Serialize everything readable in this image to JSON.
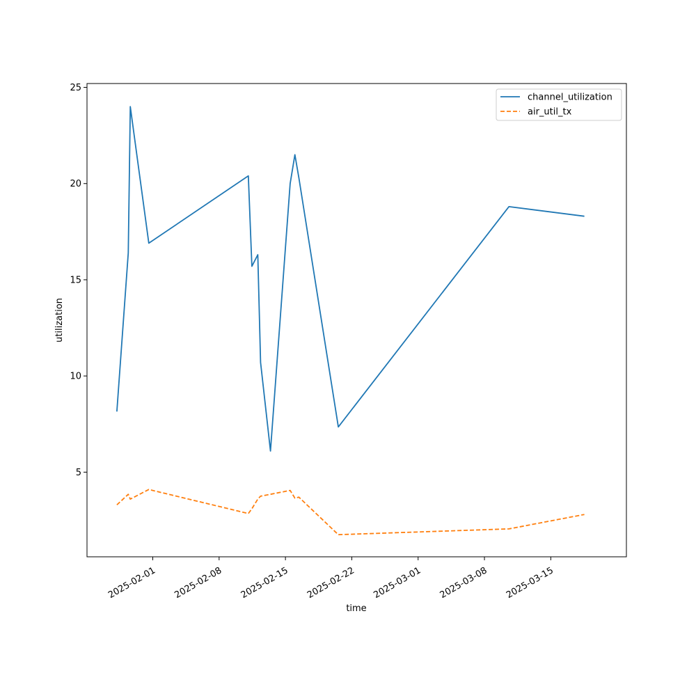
{
  "chart_data": {
    "type": "line",
    "title": "",
    "xlabel": "time",
    "ylabel": "utilization",
    "x_type": "date",
    "xlim": [
      "2025-01-25T01:25",
      "2025-03-22T23:30"
    ],
    "ylim": [
      0.6,
      25.2
    ],
    "x_ticks": [
      "2025-02-01",
      "2025-02-08",
      "2025-02-15",
      "2025-02-22",
      "2025-03-01",
      "2025-03-08",
      "2025-03-15"
    ],
    "y_ticks": [
      5,
      10,
      15,
      20,
      25
    ],
    "grid": false,
    "legend": "top-right",
    "series": [
      {
        "name": "channel_utilization",
        "color": "#1f77b4",
        "dash": "solid",
        "points": [
          {
            "x": "2025-01-28T05:00",
            "y": 8.15
          },
          {
            "x": "2025-01-29T10:00",
            "y": 16.4
          },
          {
            "x": "2025-01-29T15:00",
            "y": 24.0
          },
          {
            "x": "2025-01-31T14:00",
            "y": 16.9
          },
          {
            "x": "2025-02-11T02:00",
            "y": 20.4
          },
          {
            "x": "2025-02-11T11:00",
            "y": 15.7
          },
          {
            "x": "2025-02-12T02:00",
            "y": 16.3
          },
          {
            "x": "2025-02-12T09:00",
            "y": 10.7
          },
          {
            "x": "2025-02-13T10:00",
            "y": 6.1
          },
          {
            "x": "2025-02-15T12:00",
            "y": 20.0
          },
          {
            "x": "2025-02-16T00:00",
            "y": 21.5
          },
          {
            "x": "2025-02-16T10:00",
            "y": 20.3
          },
          {
            "x": "2025-02-20T14:00",
            "y": 7.35
          },
          {
            "x": "2025-03-10T14:00",
            "y": 18.8
          },
          {
            "x": "2025-03-18T13:00",
            "y": 18.3
          }
        ]
      },
      {
        "name": "air_util_tx",
        "color": "#ff7f0e",
        "dash": "dashed",
        "points": [
          {
            "x": "2025-01-28T05:00",
            "y": 3.3
          },
          {
            "x": "2025-01-29T10:00",
            "y": 3.85
          },
          {
            "x": "2025-01-29T15:00",
            "y": 3.6
          },
          {
            "x": "2025-01-31T14:00",
            "y": 4.1
          },
          {
            "x": "2025-02-11T02:00",
            "y": 2.85
          },
          {
            "x": "2025-02-11T11:00",
            "y": 3.1
          },
          {
            "x": "2025-02-12T02:00",
            "y": 3.6
          },
          {
            "x": "2025-02-12T09:00",
            "y": 3.75
          },
          {
            "x": "2025-02-13T10:00",
            "y": 3.85
          },
          {
            "x": "2025-02-15T12:00",
            "y": 4.05
          },
          {
            "x": "2025-02-16T00:00",
            "y": 3.65
          },
          {
            "x": "2025-02-16T10:00",
            "y": 3.7
          },
          {
            "x": "2025-02-20T14:00",
            "y": 1.75
          },
          {
            "x": "2025-03-10T14:00",
            "y": 2.05
          },
          {
            "x": "2025-03-18T13:00",
            "y": 2.8
          }
        ]
      }
    ]
  }
}
